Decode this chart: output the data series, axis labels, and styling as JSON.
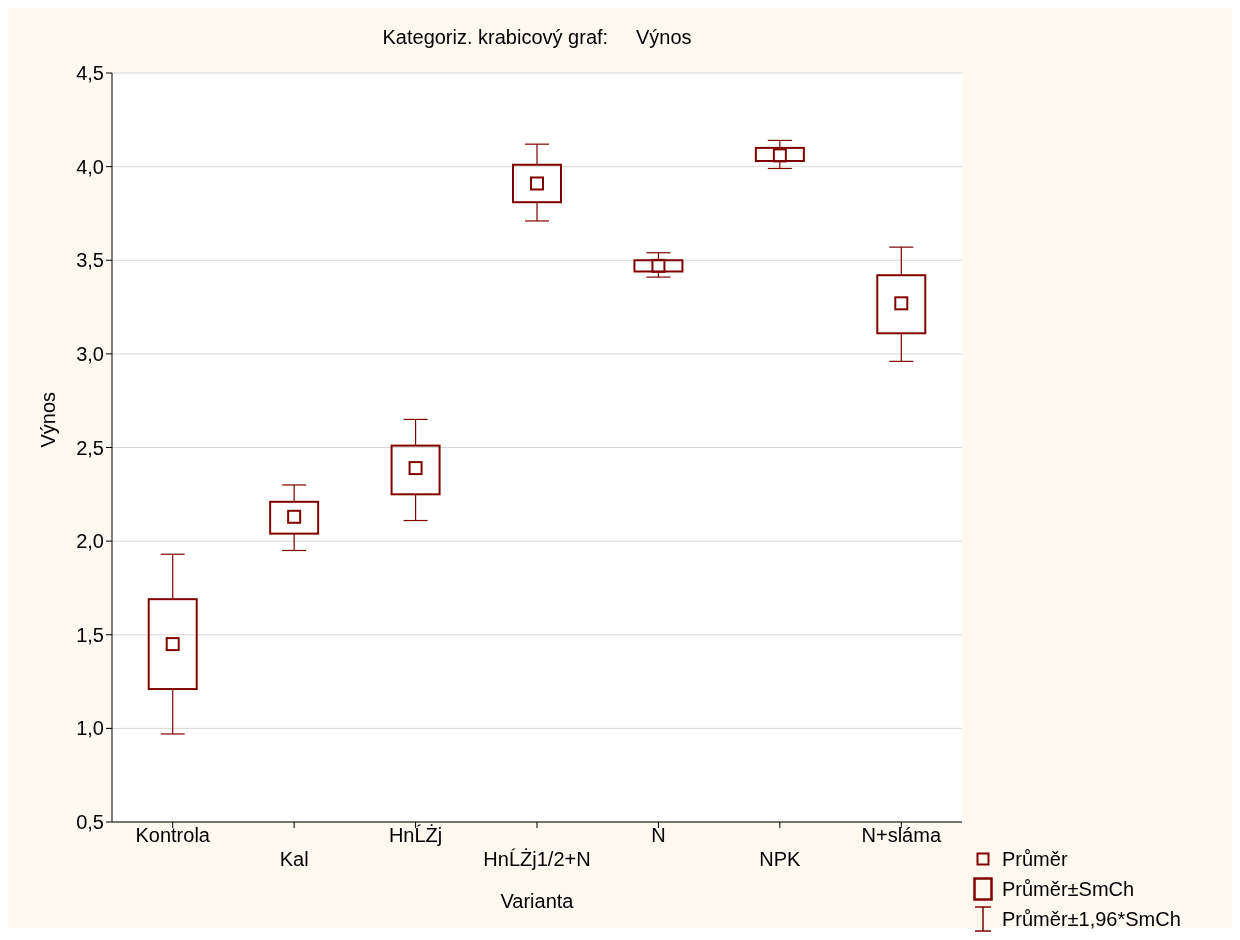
{
  "chart_data": {
    "type": "box",
    "title": "Kategoriz. krabicový graf:     Výnos",
    "xlabel": "Varianta",
    "ylabel": "Výnos",
    "categories": [
      "Kontrola",
      "Kal",
      "HnĹŻj",
      "HnĹŻj1/2+N",
      "N",
      "NPK",
      "N+sláma"
    ],
    "color": "#800000",
    "boxes": [
      {
        "low": 0.97,
        "q1": 1.21,
        "median": 1.45,
        "q3": 1.69,
        "high": 1.93
      },
      {
        "low": 1.95,
        "q1": 2.04,
        "median": 2.13,
        "q3": 2.21,
        "high": 2.3
      },
      {
        "low": 2.11,
        "q1": 2.25,
        "median": 2.39,
        "q3": 2.51,
        "high": 2.65
      },
      {
        "low": 3.71,
        "q1": 3.81,
        "median": 3.91,
        "q3": 4.01,
        "high": 4.12
      },
      {
        "low": 3.41,
        "q1": 3.44,
        "median": 3.47,
        "q3": 3.5,
        "high": 3.54
      },
      {
        "low": 3.99,
        "q1": 4.03,
        "median": 4.06,
        "q3": 4.1,
        "high": 4.14
      },
      {
        "low": 2.96,
        "q1": 3.11,
        "median": 3.27,
        "q3": 3.42,
        "high": 3.57
      }
    ],
    "ylim": [
      0.5,
      4.5
    ],
    "yticks": [
      {
        "value": 0.5,
        "label": "0,5"
      },
      {
        "value": 1,
        "label": "1,0"
      },
      {
        "value": 1.5,
        "label": "1,5"
      },
      {
        "value": 2,
        "label": "2,0"
      },
      {
        "value": 2.5,
        "label": "2,5"
      },
      {
        "value": 3,
        "label": "3,0"
      },
      {
        "value": 3.5,
        "label": "3,5"
      },
      {
        "value": 4,
        "label": "4,0"
      },
      {
        "value": 4.5,
        "label": "4,5"
      }
    ],
    "grid": "y",
    "annotations": [
      "Průměr",
      "Průměr±SmCh",
      "Průměr±1,96*SmCh"
    ]
  }
}
